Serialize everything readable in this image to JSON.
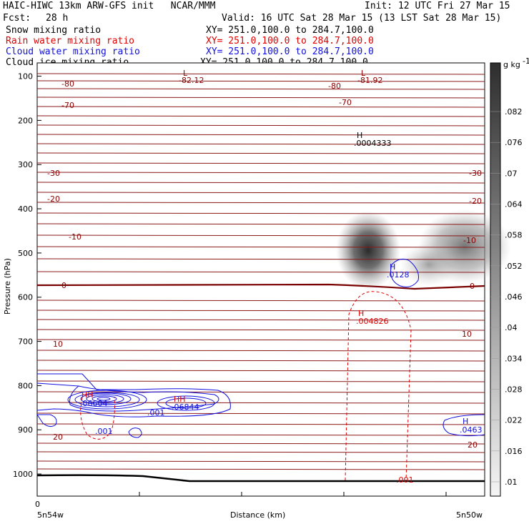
{
  "header": {
    "title_left": "HAIC-HIWC 13km ARW-GFS init   NCAR/MMM",
    "init": "Init: 12 UTC Fri 27 Mar 15",
    "fcst_label": "Fcst:",
    "fcst_value": "28 h",
    "valid": "Valid: 16 UTC Sat 28 Mar 15 (13 LST Sat 28 Mar 15)",
    "fields": [
      {
        "name": "Snow mixing ratio",
        "xy": "XY= 251.0,100.0 to 284.7,100.0",
        "color": "#000000"
      },
      {
        "name": "Rain water mixing ratio",
        "xy": "XY= 251.0,100.0 to 284.7,100.0",
        "color": "#e00000"
      },
      {
        "name": "Cloud water mixing ratio",
        "xy": "XY= 251.0,100.0 to 284.7,100.0",
        "color": "#1010e0"
      },
      {
        "name": "Cloud ice mixing ratio",
        "xy": "XY= 251.0,100.0 to 284.7,100.0",
        "color": "#000000"
      }
    ]
  },
  "chart_data": {
    "type": "cross-section contour",
    "ylabel": "Pressure (hPa)",
    "xlabel": "Distance (km)",
    "y_ticks": [
      100,
      200,
      300,
      400,
      500,
      600,
      700,
      800,
      900,
      1000
    ],
    "ylim": [
      1050,
      70
    ],
    "x_tick_label": "0",
    "x_left_label": "5n54w",
    "x_right_label": "5n50w",
    "colorbar": {
      "unit": "g kg",
      "unit_exp": "-1",
      "ticks": [
        ".01",
        ".016",
        ".022",
        ".028",
        ".034",
        ".04",
        ".046",
        ".052",
        ".058",
        ".064",
        ".07",
        ".076",
        ".082"
      ]
    },
    "temperature_labels": [
      "-80",
      "-70",
      "-30",
      "-20",
      "-10",
      "0",
      "10",
      "20"
    ],
    "extrema": [
      {
        "type": "L",
        "value": "-82.12",
        "color": "#8b0000"
      },
      {
        "type": "L",
        "value": "-81.92",
        "color": "#8b0000"
      },
      {
        "type": "H",
        "value": ".0004333",
        "color": "#000000"
      },
      {
        "type": "H",
        "value": ".0128",
        "color": "#1010e0"
      },
      {
        "type": "H",
        "value": ".004826",
        "color": "#e00000"
      },
      {
        "type": "H",
        "value": ".0463",
        "color": "#1010e0"
      },
      {
        "type": "HH",
        "value": ".06604",
        "color": "#1010e0"
      },
      {
        "type": "HH",
        "value": ".06844",
        "color": "#1010e0"
      }
    ],
    "contour_labels": [
      ".001",
      ".001",
      ".001"
    ]
  }
}
